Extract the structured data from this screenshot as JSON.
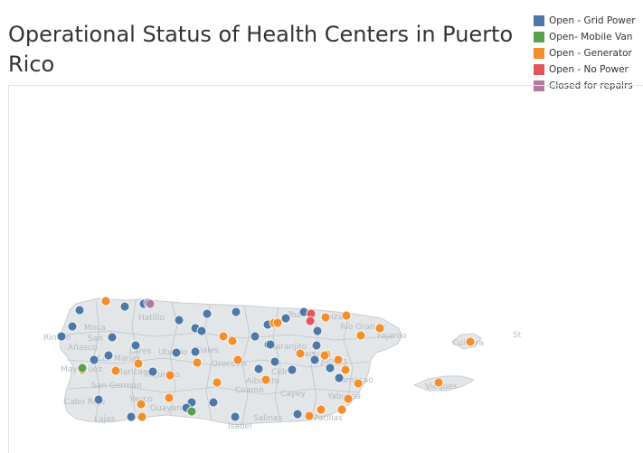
{
  "title": "Operational Status of Health Centers in Puerto Rico",
  "legend": [
    {
      "label": "Open - Grid Power",
      "color": "#4e79a7"
    },
    {
      "label": "Open- Mobile Van",
      "color": "#59a14f"
    },
    {
      "label": "Open - Generator",
      "color": "#f28e2b"
    },
    {
      "label": "Open - No Power",
      "color": "#e15759"
    },
    {
      "label": "Closed for repairs",
      "color": "#b07aa1"
    }
  ],
  "map_labels": [
    "Hatillo",
    "Moca",
    "San",
    "Rincon",
    "Añasco",
    "Lares",
    "Utuado",
    "Ciales",
    "Mayagüez",
    "Las Marias",
    "Maricao",
    "Adjuntas",
    "Orocovis",
    "San Germán",
    "Cabo Rojo",
    "Lajas",
    "Yauco",
    "Guayanilla",
    "Coamo",
    "Salinas",
    "Isabel",
    "Naranjito",
    "Cidra",
    "Aibonito",
    "Cayey",
    "Toa",
    "Loíza",
    "Río Grande",
    "Fajardo",
    "Culebra",
    "Vieques",
    "Patillas",
    "Yabucoa",
    "Caguas",
    "Juncos",
    "Humacao",
    "St"
  ]
}
